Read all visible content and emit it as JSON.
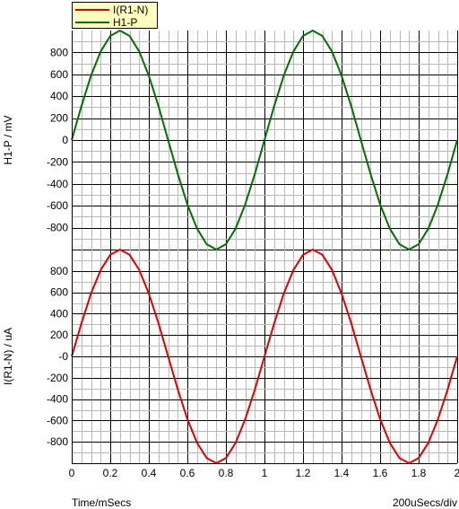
{
  "legend": [
    {
      "label": "I(R1-N)",
      "color": "#e00000"
    },
    {
      "label": "H1-P",
      "color": "#007000"
    }
  ],
  "footer": {
    "x_title": "Time/mSecs",
    "scale": "200uSecs/div"
  },
  "chart_data": [
    {
      "type": "line",
      "ylabel": "H1-P / mV",
      "ylim": [
        -1000,
        1000
      ],
      "yticks": [
        "800",
        "600",
        "400",
        "200",
        "0",
        "-200",
        "-400",
        "-600",
        "-800"
      ],
      "ytick_values": [
        800,
        600,
        400,
        200,
        0,
        -200,
        -400,
        -600,
        -800
      ],
      "xlim": [
        0,
        2
      ],
      "grid": true,
      "series": [
        {
          "name": "H1-P",
          "color": "#007000",
          "x": [
            0,
            0.05,
            0.1,
            0.15,
            0.2,
            0.25,
            0.3,
            0.35,
            0.4,
            0.45,
            0.5,
            0.55,
            0.6,
            0.65,
            0.7,
            0.75,
            0.8,
            0.85,
            0.9,
            0.95,
            1.0,
            1.05,
            1.1,
            1.15,
            1.2,
            1.25,
            1.3,
            1.35,
            1.4,
            1.45,
            1.5,
            1.55,
            1.6,
            1.65,
            1.7,
            1.75,
            1.8,
            1.85,
            1.9,
            1.95,
            2.0
          ],
          "y": [
            0,
            309,
            588,
            809,
            951,
            1000,
            951,
            809,
            588,
            309,
            0,
            -309,
            -588,
            -809,
            -951,
            -1000,
            -951,
            -809,
            -588,
            -309,
            0,
            309,
            588,
            809,
            951,
            1000,
            951,
            809,
            588,
            309,
            0,
            -309,
            -588,
            -809,
            -951,
            -1000,
            -951,
            -809,
            -588,
            -309,
            0
          ]
        }
      ]
    },
    {
      "type": "line",
      "ylabel": "I(R1-N) / uA",
      "ylim": [
        -1000,
        1000
      ],
      "yticks": [
        "800",
        "600",
        "400",
        "200",
        "-0",
        "-200",
        "-400",
        "-600",
        "-800"
      ],
      "ytick_values": [
        800,
        600,
        400,
        200,
        0,
        -200,
        -400,
        -600,
        -800
      ],
      "xlim": [
        0,
        2
      ],
      "xticks": [
        "0",
        "0.2",
        "0.4",
        "0.6",
        "0.8",
        "1",
        "1.2",
        "1.4",
        "1.6",
        "1.8",
        "2"
      ],
      "xtick_values": [
        0,
        0.2,
        0.4,
        0.6,
        0.8,
        1.0,
        1.2,
        1.4,
        1.6,
        1.8,
        2.0
      ],
      "grid": true,
      "series": [
        {
          "name": "I(R1-N)",
          "color": "#e00000",
          "x": [
            0,
            0.05,
            0.1,
            0.15,
            0.2,
            0.25,
            0.3,
            0.35,
            0.4,
            0.45,
            0.5,
            0.55,
            0.6,
            0.65,
            0.7,
            0.75,
            0.8,
            0.85,
            0.9,
            0.95,
            1.0,
            1.05,
            1.1,
            1.15,
            1.2,
            1.25,
            1.3,
            1.35,
            1.4,
            1.45,
            1.5,
            1.55,
            1.6,
            1.65,
            1.7,
            1.75,
            1.8,
            1.85,
            1.9,
            1.95,
            2.0
          ],
          "y": [
            0,
            309,
            588,
            809,
            951,
            1000,
            951,
            809,
            588,
            309,
            0,
            -309,
            -588,
            -809,
            -951,
            -1000,
            -951,
            -809,
            -588,
            -309,
            0,
            309,
            588,
            809,
            951,
            1000,
            951,
            809,
            588,
            309,
            0,
            -309,
            -588,
            -809,
            -951,
            -1000,
            -951,
            -809,
            -588,
            -309,
            0
          ]
        }
      ]
    }
  ]
}
